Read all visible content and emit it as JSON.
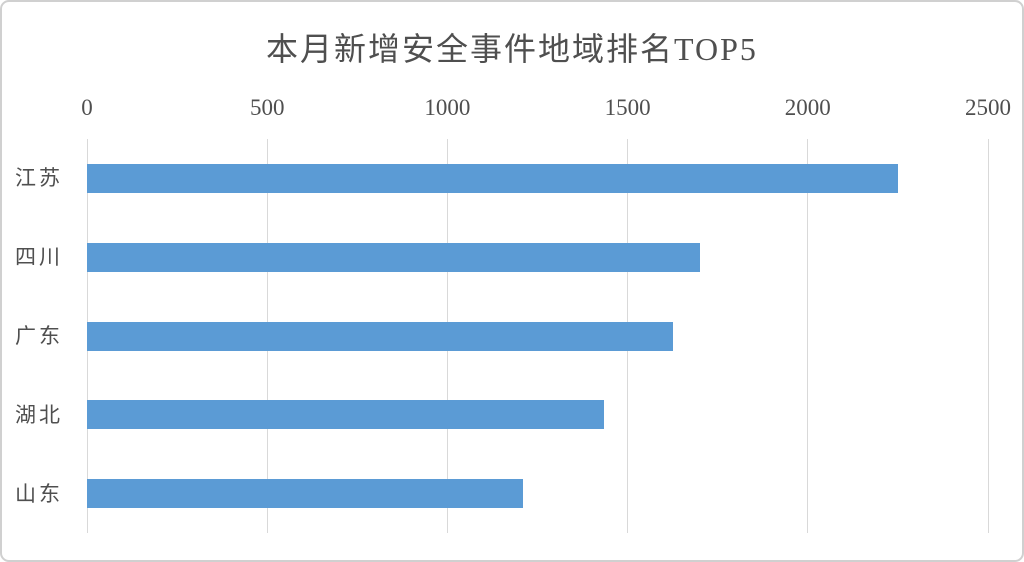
{
  "chart_data": {
    "type": "bar",
    "orientation": "horizontal",
    "title": "本月新增安全事件地域排名TOP5",
    "categories": [
      "江苏",
      "四川",
      "广东",
      "湖北",
      "山东"
    ],
    "values": [
      2250,
      1700,
      1625,
      1435,
      1210
    ],
    "xlabel": "",
    "ylabel": "",
    "x_axis": {
      "position": "top",
      "ticks": [
        0,
        500,
        1000,
        1500,
        2000,
        2500
      ],
      "range": [
        0,
        2500
      ]
    },
    "grid": "vertical-gridlines-on",
    "legend": "none",
    "colors": {
      "bar": "#5B9BD5",
      "gridline": "#D9D9D9",
      "text": "#4f4f4f",
      "frame_border": "#d0d0d0",
      "background": "#ffffff"
    }
  }
}
